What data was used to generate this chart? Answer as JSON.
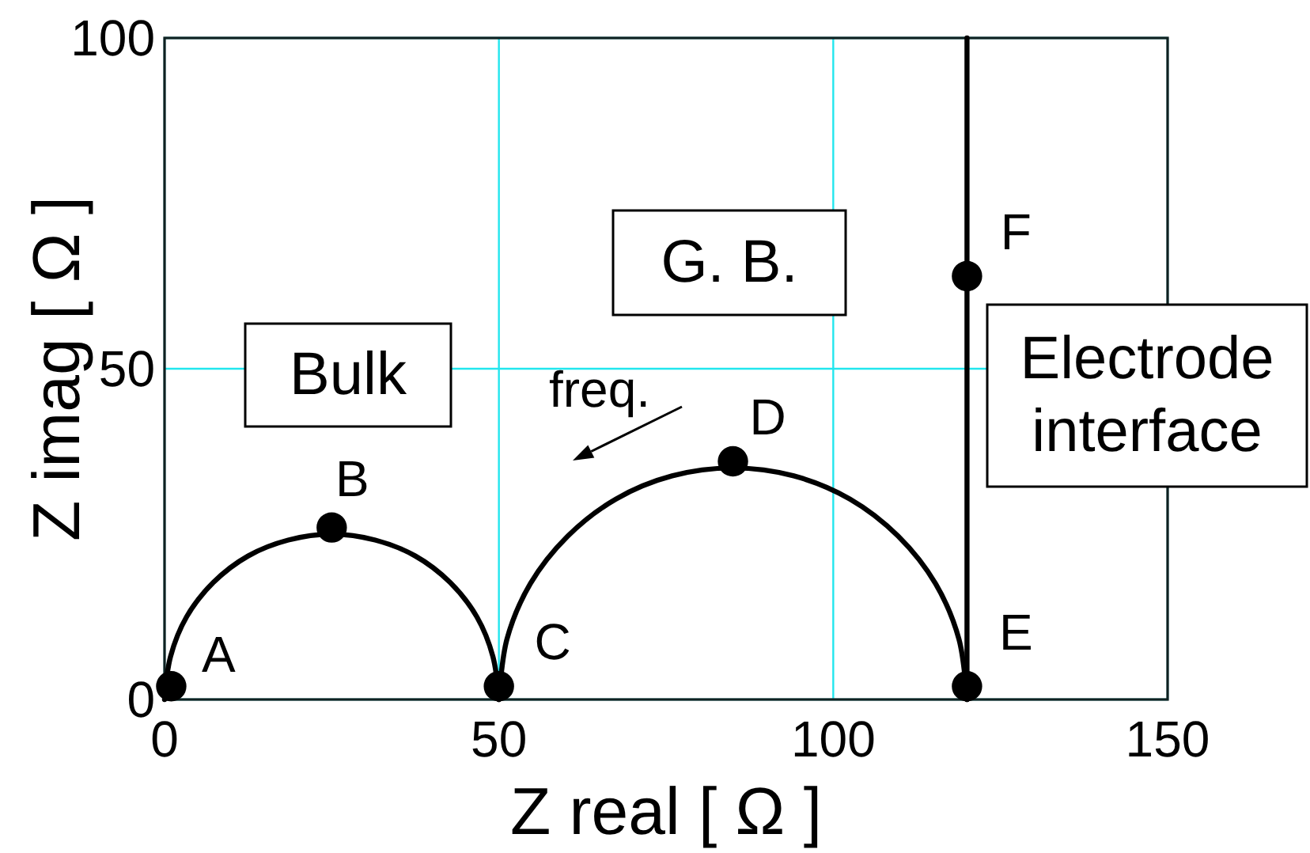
{
  "chart_data": {
    "type": "line",
    "xlabel": "Z real [ Ω ]",
    "ylabel": "Z imag [ Ω ]",
    "xlim": [
      0,
      150
    ],
    "ylim": [
      0,
      100
    ],
    "xticks": [
      0,
      50,
      100,
      150
    ],
    "yticks": [
      0,
      50,
      100
    ],
    "grid": true,
    "series": [
      {
        "color": "#000000",
        "x": [
          0,
          0.9,
          3.3,
          7.3,
          12.5,
          18.5,
          25,
          31.5,
          37.5,
          42.7,
          46.7,
          49.1,
          50
        ],
        "values": [
          0,
          6.5,
          12.5,
          17.7,
          21.7,
          24.1,
          25,
          24.1,
          21.7,
          17.7,
          12.5,
          6.5,
          0
        ]
      },
      {
        "color": "#000000",
        "x": [
          50,
          51.2,
          54.7,
          60.3,
          67.5,
          75.9,
          85,
          94.1,
          102.5,
          109.7,
          115.3,
          118.8,
          120
        ],
        "values": [
          0,
          9.1,
          17.5,
          24.7,
          30.3,
          33.8,
          35,
          33.8,
          30.3,
          24.7,
          17.5,
          9.1,
          0
        ]
      },
      {
        "color": "#000000",
        "x": [
          120,
          120
        ],
        "values": [
          0,
          100
        ]
      },
      {
        "type": "scatter",
        "color": "#000000",
        "marker": "circle",
        "x": [
          1,
          25,
          50,
          85,
          120,
          120
        ],
        "values": [
          2,
          26,
          2,
          36,
          2,
          64
        ]
      }
    ],
    "annotations": [
      "Bulk",
      "G. B.",
      "Electrode\ninterface",
      "freq.",
      {
        "text": "A",
        "x": 1,
        "y": 2
      },
      {
        "text": "B",
        "x": 25,
        "y": 26
      },
      {
        "text": "C",
        "x": 50,
        "y": 2
      },
      {
        "text": "D",
        "x": 85,
        "y": 36
      },
      {
        "text": "E",
        "x": 120,
        "y": 2
      },
      {
        "text": "F",
        "x": 120,
        "y": 64
      }
    ]
  }
}
